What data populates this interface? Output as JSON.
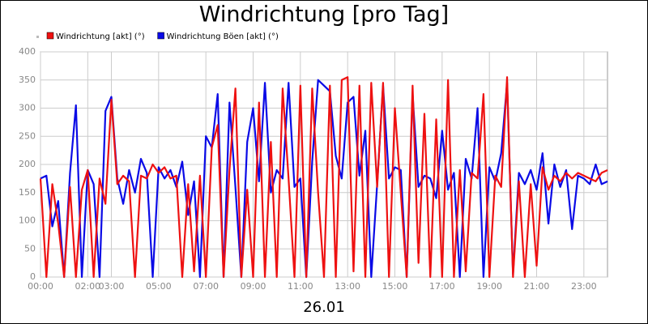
{
  "chart_data": {
    "type": "line",
    "title": "Windrichtung [pro Tag]",
    "x_label": "26.01",
    "xlim": [
      0,
      24
    ],
    "ylim": [
      0,
      400
    ],
    "xticks": [
      {
        "value": 0,
        "label": "00:00"
      },
      {
        "value": 2,
        "label": "02:00"
      },
      {
        "value": 3,
        "label": "03:00"
      },
      {
        "value": 5,
        "label": "05:00"
      },
      {
        "value": 7,
        "label": "07:00"
      },
      {
        "value": 9,
        "label": "09:00"
      },
      {
        "value": 11,
        "label": "11:00"
      },
      {
        "value": 13,
        "label": "13:00"
      },
      {
        "value": 15,
        "label": "15:00"
      },
      {
        "value": 17,
        "label": "17:00"
      },
      {
        "value": 19,
        "label": "19:00"
      },
      {
        "value": 21,
        "label": "21:00"
      },
      {
        "value": 23,
        "label": "23:00"
      }
    ],
    "yticks": [
      0,
      50,
      100,
      150,
      200,
      250,
      300,
      350,
      400
    ],
    "grid": true,
    "x": [
      0,
      0.25,
      0.5,
      0.75,
      1,
      1.25,
      1.5,
      1.75,
      2,
      2.25,
      2.5,
      2.75,
      3,
      3.25,
      3.5,
      3.75,
      4,
      4.25,
      4.5,
      4.75,
      5,
      5.25,
      5.5,
      5.75,
      6,
      6.25,
      6.5,
      6.75,
      7,
      7.25,
      7.5,
      7.75,
      8,
      8.25,
      8.5,
      8.75,
      9,
      9.25,
      9.5,
      9.75,
      10,
      10.25,
      10.5,
      10.75,
      11,
      11.25,
      11.5,
      11.75,
      12,
      12.25,
      12.5,
      12.75,
      13,
      13.25,
      13.5,
      13.75,
      14,
      14.25,
      14.5,
      14.75,
      15,
      15.25,
      15.5,
      15.75,
      16,
      16.25,
      16.5,
      16.75,
      17,
      17.25,
      17.5,
      17.75,
      18,
      18.25,
      18.5,
      18.75,
      19,
      19.25,
      19.5,
      19.75,
      20,
      20.25,
      20.5,
      20.75,
      21,
      21.25,
      21.5,
      21.75,
      22,
      22.25,
      22.5,
      22.75,
      23,
      23.25,
      23.5,
      23.75,
      24
    ],
    "series": [
      {
        "name": "Windrichtung [akt] (°)",
        "color": "#ee1111",
        "values": [
          175,
          0,
          165,
          95,
          0,
          160,
          0,
          155,
          190,
          0,
          175,
          130,
          315,
          165,
          180,
          170,
          0,
          180,
          175,
          200,
          185,
          195,
          175,
          180,
          0,
          165,
          10,
          180,
          0,
          230,
          270,
          0,
          190,
          335,
          0,
          155,
          0,
          310,
          0,
          240,
          0,
          335,
          175,
          0,
          340,
          0,
          335,
          150,
          0,
          340,
          0,
          350,
          355,
          10,
          340,
          0,
          345,
          160,
          345,
          0,
          300,
          150,
          0,
          340,
          25,
          290,
          0,
          280,
          0,
          350,
          0,
          190,
          10,
          185,
          175,
          325,
          0,
          180,
          160,
          355,
          0,
          170,
          0,
          165,
          20,
          195,
          155,
          180,
          170,
          185,
          175,
          185,
          180,
          175,
          170,
          185,
          190
        ]
      },
      {
        "name": "Windrichtung Böen [akt] (°)",
        "color": "#0a0ae6",
        "values": [
          175,
          180,
          90,
          135,
          0,
          185,
          305,
          0,
          190,
          165,
          0,
          295,
          320,
          175,
          130,
          190,
          150,
          210,
          185,
          0,
          195,
          175,
          190,
          160,
          205,
          110,
          170,
          0,
          250,
          230,
          325,
          0,
          310,
          160,
          0,
          240,
          300,
          170,
          345,
          150,
          190,
          175,
          345,
          160,
          175,
          0,
          205,
          350,
          340,
          330,
          215,
          175,
          310,
          320,
          180,
          260,
          0,
          165,
          340,
          175,
          195,
          190,
          0,
          325,
          160,
          180,
          175,
          140,
          260,
          155,
          185,
          0,
          210,
          175,
          300,
          0,
          195,
          170,
          220,
          345,
          5,
          185,
          165,
          190,
          155,
          220,
          95,
          200,
          160,
          190,
          85,
          180,
          175,
          165,
          200,
          165,
          170
        ]
      }
    ]
  }
}
